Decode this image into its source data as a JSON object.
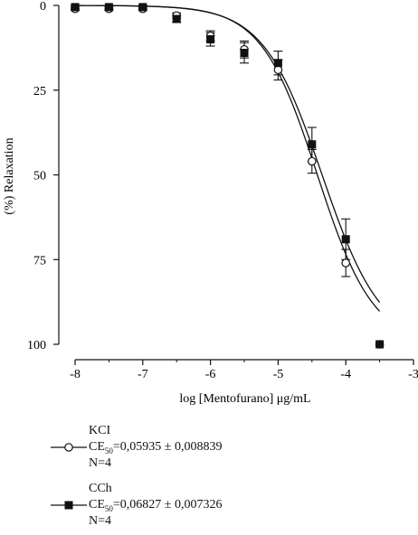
{
  "chart_data": {
    "type": "scatter",
    "xlabel": "log [Mentofurano] μg/mL",
    "ylabel": "(%) Relaxation",
    "xlim": [
      -8,
      -3
    ],
    "ylim": [
      100,
      0
    ],
    "y_inverted": true,
    "xticks": [
      "-8",
      "-7",
      "-6",
      "-5",
      "-4",
      "-3"
    ],
    "yticks": [
      "0",
      "25",
      "50",
      "75",
      "100"
    ],
    "legend_position": "bottom-left",
    "series": [
      {
        "name": "KCl",
        "marker": "open-circle",
        "color": "#111111",
        "x": [
          -8,
          -7.5,
          -7,
          -6.5,
          -6,
          -5.5,
          -5,
          -4.5,
          -4,
          -3.5
        ],
        "y": [
          1,
          1,
          1,
          3,
          9,
          13,
          19,
          46,
          76,
          100
        ],
        "err": [
          0.5,
          0.5,
          0.5,
          0.8,
          1.5,
          2.5,
          3,
          3.5,
          4,
          0
        ],
        "ec50": "0,05935 ± 0,008839",
        "n": "N=4"
      },
      {
        "name": "CCh",
        "marker": "filled-square",
        "color": "#111111",
        "x": [
          -8,
          -7.5,
          -7,
          -6.5,
          -6,
          -5.5,
          -5,
          -4.5,
          -4,
          -3.5
        ],
        "y": [
          0.5,
          0.5,
          0.5,
          4,
          10,
          14,
          17,
          41,
          69,
          100
        ],
        "err": [
          0.5,
          0.5,
          0.5,
          1,
          2,
          3,
          3.5,
          5,
          6,
          0
        ],
        "ec50": "0,06827 ± 0,007326",
        "n": "N=4"
      }
    ]
  },
  "legend": [
    {
      "name": "KCI",
      "ce_label": "CE",
      "ce_sub": "50",
      "ce_value": "=0,05935 ± 0,008839",
      "n": "N=4"
    },
    {
      "name": "CCh",
      "ce_label": "CE",
      "ce_sub": "50",
      "ce_value": "=0,06827 ± 0,007326",
      "n": "N=4"
    }
  ]
}
